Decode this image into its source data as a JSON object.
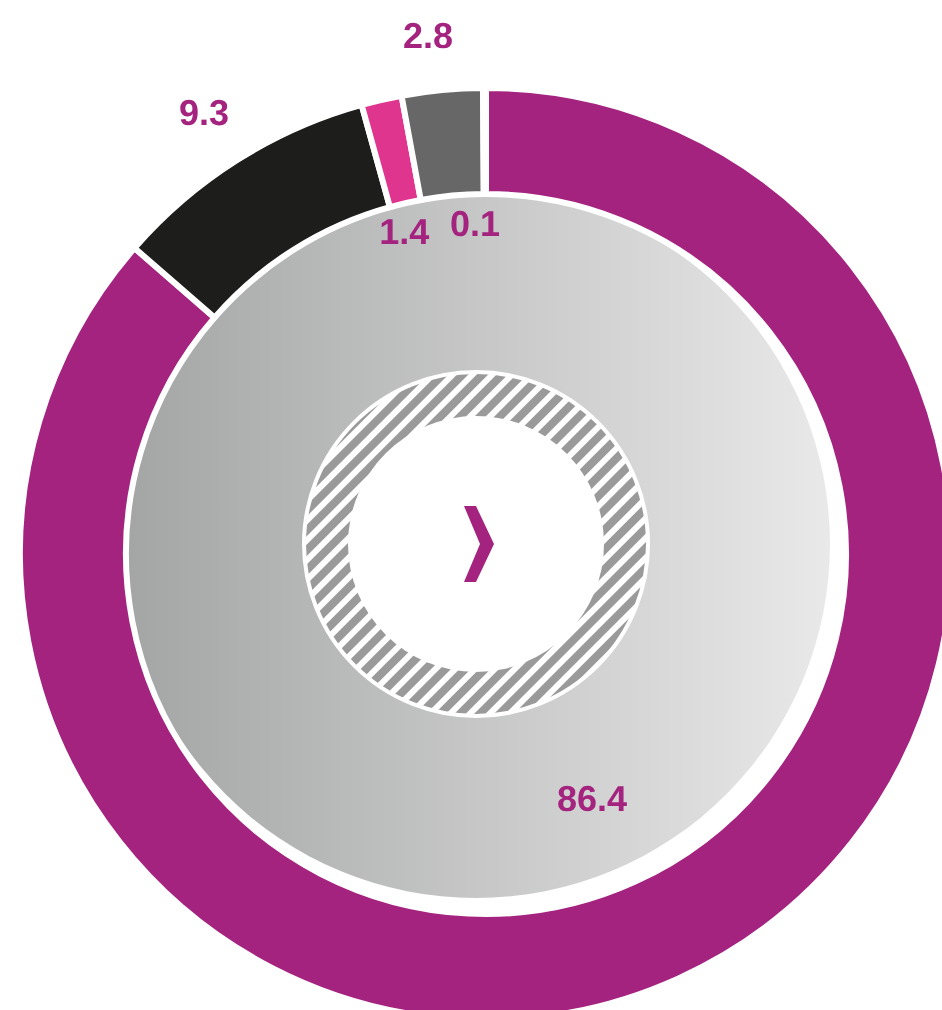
{
  "chart_data": {
    "type": "donut",
    "categories": [
      null,
      null,
      null,
      null,
      null
    ],
    "values": [
      86.4,
      9.3,
      1.4,
      2.8,
      0.1
    ],
    "colors": [
      "#a4237f",
      "#1d1d1b",
      "#e0358e",
      "#676767",
      "#d0112b"
    ],
    "data_labels": true
  }
}
